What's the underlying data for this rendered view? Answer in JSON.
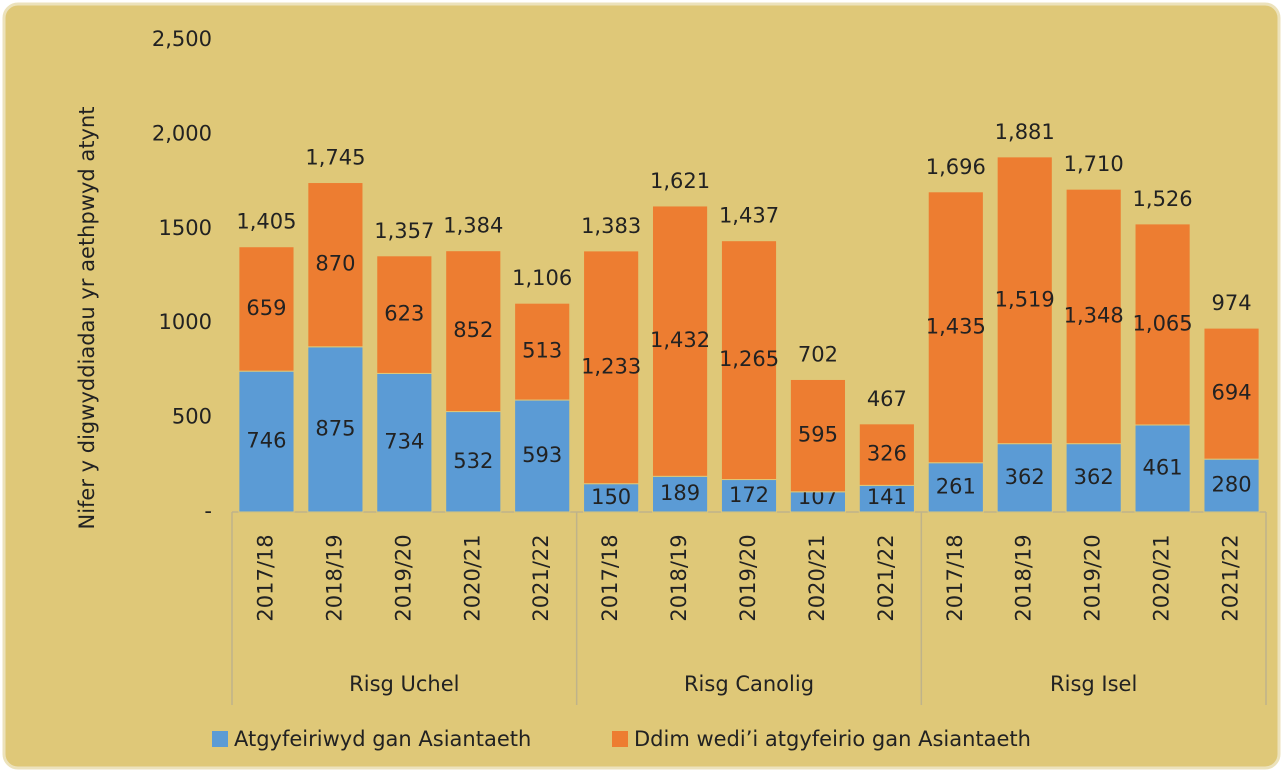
{
  "chart_data": {
    "type": "stacked_bar",
    "y_label": "Nifer y digwyddiadau yr aethpwyd atynt",
    "groups": [
      {
        "name": "Risg Uchel",
        "categories": [
          "2017/18",
          "2018/19",
          "2019/20",
          "2020/21",
          "2021/22"
        ]
      },
      {
        "name": "Risg Canolig",
        "categories": [
          "2017/18",
          "2018/19",
          "2019/20",
          "2020/21",
          "2021/22"
        ]
      },
      {
        "name": "Risg Isel",
        "categories": [
          "2017/18",
          "2018/19",
          "2019/20",
          "2020/21",
          "2021/22"
        ]
      }
    ],
    "series": [
      {
        "name": "Atgyfeiriwyd gan Asiantaeth",
        "color": "#5b9bd5",
        "values": [
          746,
          875,
          734,
          532,
          593,
          150,
          189,
          172,
          107,
          141,
          261,
          362,
          362,
          461,
          280
        ]
      },
      {
        "name": "Ddim wedi’i atgyfeirio gan Asiantaeth",
        "color": "#ed7d31",
        "values": [
          659,
          870,
          623,
          852,
          513,
          1233,
          1432,
          1265,
          595,
          326,
          1435,
          1519,
          1348,
          1065,
          694
        ],
        "value_labels": [
          "659",
          "870",
          "623",
          "852",
          "513",
          "1,233",
          "1,432",
          "1,265",
          "595",
          "326",
          "1,435",
          "1,519",
          "1,348",
          "1,065",
          "694"
        ]
      }
    ],
    "totals": [
      1405,
      1745,
      1357,
      1384,
      1106,
      1383,
      1621,
      1437,
      702,
      467,
      1696,
      1881,
      1710,
      1526,
      974
    ],
    "total_labels": [
      "1,405",
      "1,745",
      "1,357",
      "1,384",
      "1,106",
      "1,383",
      "1,621",
      "1,437",
      "702",
      "467",
      "1,696",
      "1,881",
      "1,710",
      "1,526",
      "974"
    ],
    "ylim": [
      0,
      2500
    ],
    "yticks": [
      {
        "value": 0,
        "label": "-"
      },
      500,
      1000,
      1500,
      {
        "value": 2000,
        "label": "2,000"
      },
      {
        "value": 2500,
        "label": "2,500"
      }
    ],
    "legend": "bottom"
  }
}
